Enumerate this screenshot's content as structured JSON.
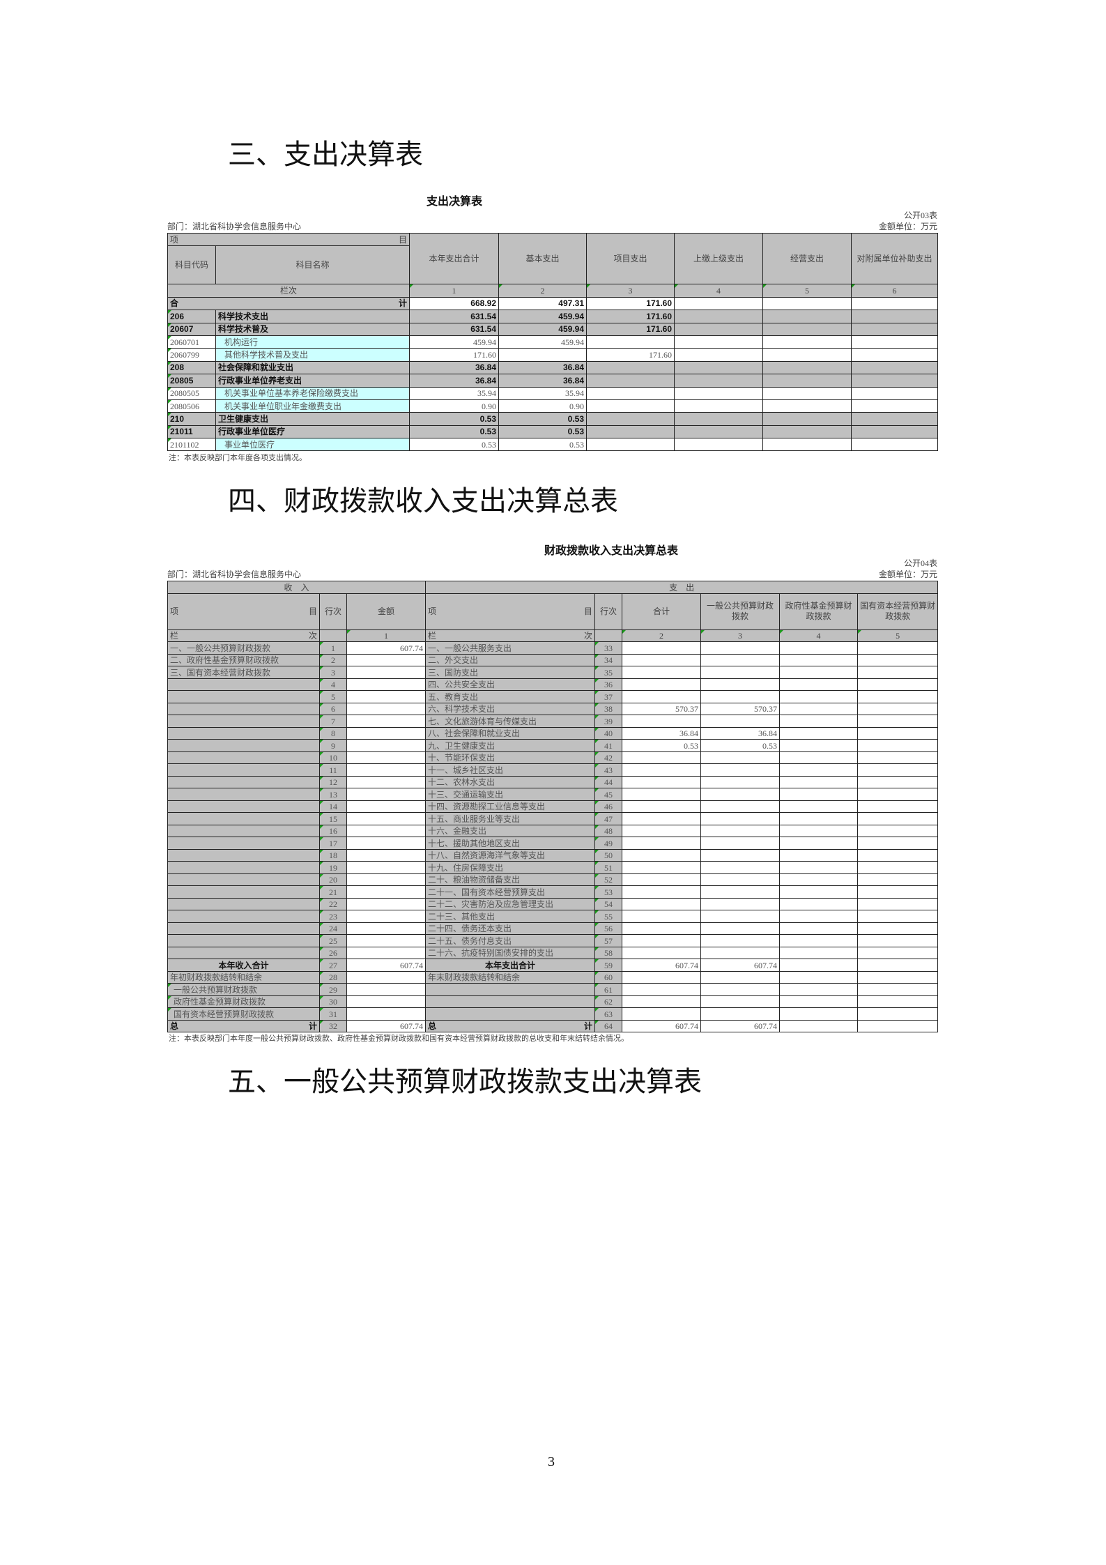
{
  "headings": {
    "section3": "三、支出决算表",
    "section4": "四、财政拨款收入支出决算总表",
    "section5": "五、一般公共预算财政拨款支出决算表"
  },
  "table03": {
    "title": "支出决算表",
    "form_no": "公开03表",
    "unit": "金额单位：万元",
    "dept": "部门：湖北省科协学会信息服务中心",
    "header": {
      "item_left": "项",
      "item_right": "目",
      "code": "科目代码",
      "name": "科目名称",
      "columns": [
        "本年支出合计",
        "基本支出",
        "项目支出",
        "上缴上级支出",
        "经营支出",
        "对附属单位补助支出"
      ],
      "lanci": "栏次",
      "col_nums": [
        "1",
        "2",
        "3",
        "4",
        "5",
        "6"
      ]
    },
    "total": {
      "left": "合",
      "right": "计",
      "values": [
        "668.92",
        "497.31",
        "171.60",
        "",
        "",
        ""
      ]
    },
    "rows": [
      {
        "code": "206",
        "name": "科学技术支出",
        "bold": true,
        "values": [
          "631.54",
          "459.94",
          "171.60",
          "",
          "",
          ""
        ]
      },
      {
        "code": "20607",
        "name": "科学技术普及",
        "bold": true,
        "values": [
          "631.54",
          "459.94",
          "171.60",
          "",
          "",
          ""
        ]
      },
      {
        "code": "2060701",
        "name": "机构运行",
        "bold": false,
        "values": [
          "459.94",
          "459.94",
          "",
          "",
          "",
          ""
        ]
      },
      {
        "code": "2060799",
        "name": "其他科学技术普及支出",
        "bold": false,
        "values": [
          "171.60",
          "",
          "171.60",
          "",
          "",
          ""
        ]
      },
      {
        "code": "208",
        "name": "社会保障和就业支出",
        "bold": true,
        "values": [
          "36.84",
          "36.84",
          "",
          "",
          "",
          ""
        ]
      },
      {
        "code": "20805",
        "name": "行政事业单位养老支出",
        "bold": true,
        "values": [
          "36.84",
          "36.84",
          "",
          "",
          "",
          ""
        ]
      },
      {
        "code": "2080505",
        "name": "机关事业单位基本养老保险缴费支出",
        "bold": false,
        "values": [
          "35.94",
          "35.94",
          "",
          "",
          "",
          ""
        ]
      },
      {
        "code": "2080506",
        "name": "机关事业单位职业年金缴费支出",
        "bold": false,
        "values": [
          "0.90",
          "0.90",
          "",
          "",
          "",
          ""
        ]
      },
      {
        "code": "210",
        "name": "卫生健康支出",
        "bold": true,
        "values": [
          "0.53",
          "0.53",
          "",
          "",
          "",
          ""
        ]
      },
      {
        "code": "21011",
        "name": "行政事业单位医疗",
        "bold": true,
        "values": [
          "0.53",
          "0.53",
          "",
          "",
          "",
          ""
        ]
      },
      {
        "code": "2101102",
        "name": "事业单位医疗",
        "bold": false,
        "values": [
          "0.53",
          "0.53",
          "",
          "",
          "",
          ""
        ]
      }
    ],
    "note": "注：本表反映部门本年度各项支出情况。"
  },
  "table04": {
    "title": "财政拨款收入支出决算总表",
    "form_no": "公开04表",
    "unit": "金额单位：万元",
    "dept": "部门：湖北省科协学会信息服务中心",
    "header": {
      "income": "收　入",
      "expense": "支　出",
      "item_left": "项",
      "item_right": "目",
      "line": "行次",
      "amount": "金额",
      "columns": [
        "合计",
        "一般公共预算财政拨款",
        "政府性基金预算财政拨款",
        "国有资本经营预算财政拨款"
      ],
      "lan": "栏",
      "ci": "次",
      "amount_num": "1",
      "col_nums": [
        "2",
        "3",
        "4",
        "5"
      ]
    },
    "rows": [
      {
        "l_label": "一、一般公共预算财政拨款",
        "l_no": "1",
        "l_amt": "607.74",
        "r_label": "一、一般公共服务支出",
        "r_no": "33",
        "values": [
          "",
          "",
          "",
          ""
        ]
      },
      {
        "l_label": "二、政府性基金预算财政拨款",
        "l_no": "2",
        "l_amt": "",
        "r_label": "二、外交支出",
        "r_no": "34",
        "values": [
          "",
          "",
          "",
          ""
        ]
      },
      {
        "l_label": "三、国有资本经营财政拨款",
        "l_no": "3",
        "l_amt": "",
        "r_label": "三、国防支出",
        "r_no": "35",
        "values": [
          "",
          "",
          "",
          ""
        ]
      },
      {
        "l_label": "",
        "l_no": "4",
        "l_amt": "",
        "r_label": "四、公共安全支出",
        "r_no": "36",
        "values": [
          "",
          "",
          "",
          ""
        ]
      },
      {
        "l_label": "",
        "l_no": "5",
        "l_amt": "",
        "r_label": "五、教育支出",
        "r_no": "37",
        "values": [
          "",
          "",
          "",
          ""
        ]
      },
      {
        "l_label": "",
        "l_no": "6",
        "l_amt": "",
        "r_label": "六、科学技术支出",
        "r_no": "38",
        "values": [
          "570.37",
          "570.37",
          "",
          ""
        ]
      },
      {
        "l_label": "",
        "l_no": "7",
        "l_amt": "",
        "r_label": "七、文化旅游体育与传媒支出",
        "r_no": "39",
        "values": [
          "",
          "",
          "",
          ""
        ]
      },
      {
        "l_label": "",
        "l_no": "8",
        "l_amt": "",
        "r_label": "八、社会保障和就业支出",
        "r_no": "40",
        "values": [
          "36.84",
          "36.84",
          "",
          ""
        ]
      },
      {
        "l_label": "",
        "l_no": "9",
        "l_amt": "",
        "r_label": "九、卫生健康支出",
        "r_no": "41",
        "values": [
          "0.53",
          "0.53",
          "",
          ""
        ]
      },
      {
        "l_label": "",
        "l_no": "10",
        "l_amt": "",
        "r_label": "十、节能环保支出",
        "r_no": "42",
        "values": [
          "",
          "",
          "",
          ""
        ]
      },
      {
        "l_label": "",
        "l_no": "11",
        "l_amt": "",
        "r_label": "十一、城乡社区支出",
        "r_no": "43",
        "values": [
          "",
          "",
          "",
          ""
        ]
      },
      {
        "l_label": "",
        "l_no": "12",
        "l_amt": "",
        "r_label": "十二、农林水支出",
        "r_no": "44",
        "values": [
          "",
          "",
          "",
          ""
        ]
      },
      {
        "l_label": "",
        "l_no": "13",
        "l_amt": "",
        "r_label": "十三、交通运输支出",
        "r_no": "45",
        "values": [
          "",
          "",
          "",
          ""
        ]
      },
      {
        "l_label": "",
        "l_no": "14",
        "l_amt": "",
        "r_label": "十四、资源勘探工业信息等支出",
        "r_no": "46",
        "values": [
          "",
          "",
          "",
          ""
        ]
      },
      {
        "l_label": "",
        "l_no": "15",
        "l_amt": "",
        "r_label": "十五、商业服务业等支出",
        "r_no": "47",
        "values": [
          "",
          "",
          "",
          ""
        ]
      },
      {
        "l_label": "",
        "l_no": "16",
        "l_amt": "",
        "r_label": "十六、金融支出",
        "r_no": "48",
        "values": [
          "",
          "",
          "",
          ""
        ]
      },
      {
        "l_label": "",
        "l_no": "17",
        "l_amt": "",
        "r_label": "十七、援助其他地区支出",
        "r_no": "49",
        "values": [
          "",
          "",
          "",
          ""
        ]
      },
      {
        "l_label": "",
        "l_no": "18",
        "l_amt": "",
        "r_label": "十八、自然资源海洋气象等支出",
        "r_no": "50",
        "values": [
          "",
          "",
          "",
          ""
        ]
      },
      {
        "l_label": "",
        "l_no": "19",
        "l_amt": "",
        "r_label": "十九、住房保障支出",
        "r_no": "51",
        "values": [
          "",
          "",
          "",
          ""
        ]
      },
      {
        "l_label": "",
        "l_no": "20",
        "l_amt": "",
        "r_label": "二十、粮油物资储备支出",
        "r_no": "52",
        "values": [
          "",
          "",
          "",
          ""
        ]
      },
      {
        "l_label": "",
        "l_no": "21",
        "l_amt": "",
        "r_label": "二十一、国有资本经营预算支出",
        "r_no": "53",
        "values": [
          "",
          "",
          "",
          ""
        ]
      },
      {
        "l_label": "",
        "l_no": "22",
        "l_amt": "",
        "r_label": "二十二、灾害防治及应急管理支出",
        "r_no": "54",
        "values": [
          "",
          "",
          "",
          ""
        ]
      },
      {
        "l_label": "",
        "l_no": "23",
        "l_amt": "",
        "r_label": "二十三、其他支出",
        "r_no": "55",
        "values": [
          "",
          "",
          "",
          ""
        ]
      },
      {
        "l_label": "",
        "l_no": "24",
        "l_amt": "",
        "r_label": "二十四、债务还本支出",
        "r_no": "56",
        "values": [
          "",
          "",
          "",
          ""
        ]
      },
      {
        "l_label": "",
        "l_no": "25",
        "l_amt": "",
        "r_label": "二十五、债务付息支出",
        "r_no": "57",
        "values": [
          "",
          "",
          "",
          ""
        ]
      },
      {
        "l_label": "",
        "l_no": "26",
        "l_amt": "",
        "r_label": "二十六、抗疫特别国债安排的支出",
        "r_no": "58",
        "values": [
          "",
          "",
          "",
          ""
        ]
      },
      {
        "l_label": "本年收入合计",
        "l_no": "27",
        "l_amt": "607.74",
        "r_label": "本年支出合计",
        "r_no": "59",
        "values": [
          "607.74",
          "607.74",
          "",
          ""
        ],
        "type": "subtotal"
      },
      {
        "l_label": "年初财政拨款结转和结余",
        "l_no": "28",
        "l_amt": "",
        "r_label": "年末财政拨款结转和结余",
        "r_no": "60",
        "values": [
          "",
          "",
          "",
          ""
        ]
      },
      {
        "l_label": " 一般公共预算财政拨款",
        "l_no": "29",
        "l_amt": "",
        "r_label": "",
        "r_no": "61",
        "values": [
          "",
          "",
          "",
          ""
        ]
      },
      {
        "l_label": " 政府性基金预算财政拨款",
        "l_no": "30",
        "l_amt": "",
        "r_label": "",
        "r_no": "62",
        "values": [
          "",
          "",
          "",
          ""
        ]
      },
      {
        "l_label": " 国有资本经营预算财政拨款",
        "l_no": "31",
        "l_amt": "",
        "r_label": "",
        "r_no": "63",
        "values": [
          "",
          "",
          "",
          ""
        ]
      }
    ],
    "grand_total": {
      "left": "总",
      "right": "计",
      "l_no": "32",
      "l_amt": "607.74",
      "r_no": "64",
      "values": [
        "607.74",
        "607.74",
        "",
        ""
      ]
    },
    "note": "注：本表反映部门本年度一般公共预算财政拨款、政府性基金预算财政拨款和国有资本经营预算财政拨款的总收支和年末结转结余情况。"
  },
  "page_number": "3",
  "colors": {
    "header_gray": "#c0c0c0",
    "leaf_cyan": "#ccffff",
    "marker_green": "#1a9a1a"
  }
}
